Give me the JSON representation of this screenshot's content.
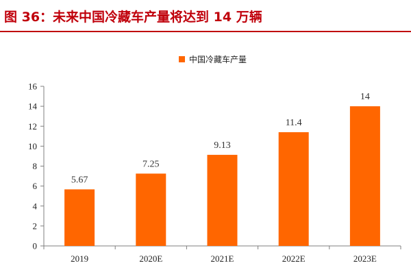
{
  "title": "图 36：未来中国冷藏车产量将达到 14 万辆",
  "colors": {
    "title": "#c0000b",
    "bar": "#ff6600",
    "axis": "#7f7f7f"
  },
  "chart_data": {
    "type": "bar",
    "categories": [
      "2019",
      "2020E",
      "2021E",
      "2022E",
      "2023E"
    ],
    "series": [
      {
        "name": "中国冷藏车产量",
        "values": [
          5.67,
          7.25,
          9.13,
          11.4,
          14
        ]
      }
    ],
    "data_labels": [
      "5.67",
      "7.25",
      "9.13",
      "11.4",
      "14"
    ],
    "ylim": [
      0,
      16
    ],
    "yticks": [
      0,
      2,
      4,
      6,
      8,
      10,
      12,
      14,
      16
    ],
    "grid": false,
    "legend": "top-center"
  }
}
